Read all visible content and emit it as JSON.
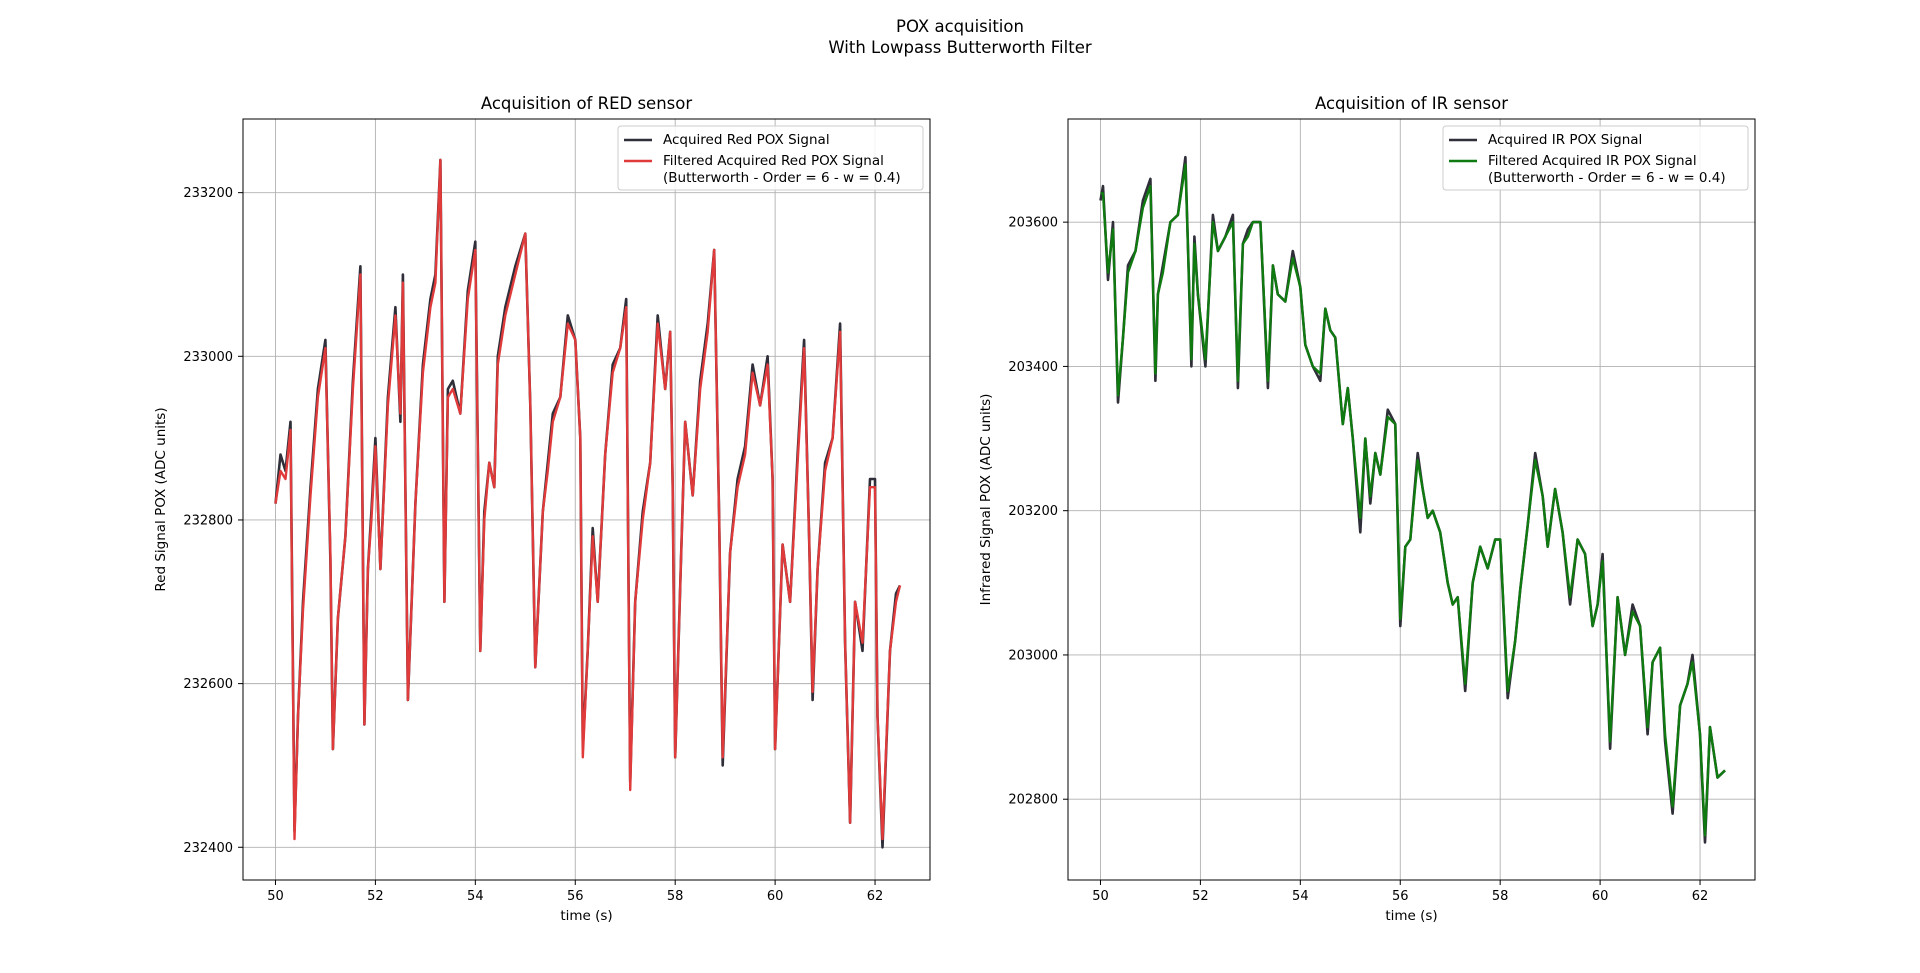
{
  "figure": {
    "suptitle_line1": "POX acquisition",
    "suptitle_line2": "With Lowpass Butterworth Filter"
  },
  "chart_data": [
    {
      "type": "line",
      "title": "Acquisition of RED sensor",
      "xlabel": "time (s)",
      "ylabel": "Red Signal POX (ADC units)",
      "xlim": [
        49.35,
        63.1
      ],
      "ylim": [
        232360,
        233290
      ],
      "xticks": [
        50,
        52,
        54,
        56,
        58,
        60,
        62
      ],
      "yticks": [
        232400,
        232600,
        232800,
        233000,
        233200
      ],
      "grid": true,
      "legend": "top-right",
      "series": [
        {
          "name": "Acquired Red POX Signal",
          "color": "#2f2f3a",
          "x": [
            50.0,
            50.1,
            50.2,
            50.3,
            50.38,
            50.45,
            50.55,
            50.7,
            50.85,
            51.0,
            51.1,
            51.15,
            51.25,
            51.4,
            51.55,
            51.7,
            51.78,
            51.85,
            51.92,
            52.0,
            52.1,
            52.25,
            52.4,
            52.5,
            52.55,
            52.65,
            52.8,
            52.95,
            53.1,
            53.2,
            53.3,
            53.38,
            53.45,
            53.55,
            53.7,
            53.85,
            54.0,
            54.1,
            54.18,
            54.28,
            54.38,
            54.45,
            54.6,
            54.8,
            55.0,
            55.1,
            55.2,
            55.35,
            55.45,
            55.55,
            55.7,
            55.85,
            56.0,
            56.1,
            56.15,
            56.25,
            56.35,
            56.45,
            56.6,
            56.75,
            56.9,
            57.02,
            57.1,
            57.2,
            57.35,
            57.5,
            57.65,
            57.8,
            57.9,
            57.95,
            58.0,
            58.12,
            58.2,
            58.35,
            58.5,
            58.65,
            58.78,
            58.88,
            58.95,
            59.1,
            59.25,
            59.4,
            59.55,
            59.7,
            59.85,
            59.95,
            60.0,
            60.15,
            60.3,
            60.45,
            60.58,
            60.68,
            60.75,
            60.85,
            61.0,
            61.15,
            61.3,
            61.4,
            61.5,
            61.6,
            61.75,
            61.9,
            62.0,
            62.05,
            62.15,
            62.3,
            62.42,
            62.5
          ],
          "y": [
            232820,
            232880,
            232860,
            232920,
            232420,
            232560,
            232700,
            232840,
            232960,
            233020,
            232750,
            232520,
            232680,
            232780,
            232970,
            233110,
            232550,
            232740,
            232810,
            232900,
            232740,
            232950,
            233060,
            232920,
            233100,
            232580,
            232820,
            232990,
            233070,
            233100,
            233240,
            232700,
            232960,
            232970,
            232930,
            233080,
            233140,
            232640,
            232810,
            232870,
            232840,
            233000,
            233060,
            233110,
            233150,
            232940,
            232620,
            232810,
            232870,
            232930,
            232950,
            233050,
            233020,
            232900,
            232520,
            232640,
            232790,
            232700,
            232880,
            232990,
            233010,
            233070,
            232480,
            232700,
            232810,
            232870,
            233050,
            232960,
            233030,
            232840,
            232510,
            232760,
            232920,
            232830,
            232970,
            233040,
            233130,
            232800,
            232500,
            232760,
            232850,
            232890,
            232990,
            232940,
            233000,
            232850,
            232520,
            232770,
            232700,
            232880,
            233020,
            232780,
            232580,
            232740,
            232870,
            232900,
            233040,
            232650,
            232430,
            232700,
            232640,
            232850,
            232850,
            232560,
            232400,
            232640,
            232710,
            232720
          ]
        },
        {
          "name": "Filtered Acquired Red POX Signal\n(Butterworth - Order = 6 - w = 0.4)",
          "color": "#e03a3a",
          "x": [
            50.0,
            50.1,
            50.2,
            50.3,
            50.38,
            50.45,
            50.55,
            50.7,
            50.85,
            51.0,
            51.1,
            51.15,
            51.25,
            51.4,
            51.55,
            51.7,
            51.78,
            51.85,
            51.92,
            52.0,
            52.1,
            52.25,
            52.4,
            52.5,
            52.55,
            52.65,
            52.8,
            52.95,
            53.1,
            53.2,
            53.3,
            53.38,
            53.45,
            53.55,
            53.7,
            53.85,
            54.0,
            54.1,
            54.18,
            54.28,
            54.38,
            54.45,
            54.6,
            54.8,
            55.0,
            55.1,
            55.2,
            55.35,
            55.45,
            55.55,
            55.7,
            55.85,
            56.0,
            56.1,
            56.15,
            56.25,
            56.35,
            56.45,
            56.6,
            56.75,
            56.9,
            57.02,
            57.1,
            57.2,
            57.35,
            57.5,
            57.65,
            57.8,
            57.9,
            57.95,
            58.0,
            58.12,
            58.2,
            58.35,
            58.5,
            58.65,
            58.78,
            58.88,
            58.95,
            59.1,
            59.25,
            59.4,
            59.55,
            59.7,
            59.85,
            59.95,
            60.0,
            60.15,
            60.3,
            60.45,
            60.58,
            60.68,
            60.75,
            60.85,
            61.0,
            61.15,
            61.3,
            61.4,
            61.5,
            61.6,
            61.75,
            61.9,
            62.0,
            62.05,
            62.15,
            62.3,
            62.42,
            62.5
          ],
          "y": [
            232820,
            232860,
            232850,
            232910,
            232410,
            232560,
            232690,
            232830,
            232950,
            233010,
            232760,
            232520,
            232680,
            232780,
            232960,
            233100,
            232550,
            232740,
            232800,
            232890,
            232740,
            232940,
            233050,
            232930,
            233090,
            232580,
            232820,
            232980,
            233060,
            233090,
            233240,
            232700,
            232950,
            232960,
            232930,
            233070,
            233130,
            232640,
            232800,
            232870,
            232840,
            232990,
            233050,
            233100,
            233150,
            232940,
            232620,
            232810,
            232860,
            232920,
            232950,
            233040,
            233020,
            232900,
            232510,
            232640,
            232780,
            232700,
            232880,
            232980,
            233010,
            233060,
            232470,
            232700,
            232800,
            232870,
            233040,
            232960,
            233030,
            232840,
            232510,
            232760,
            232920,
            232830,
            232960,
            233030,
            233130,
            232800,
            232510,
            232760,
            232840,
            232880,
            232980,
            232940,
            232990,
            232850,
            232520,
            232770,
            232700,
            232870,
            233010,
            232780,
            232590,
            232740,
            232860,
            232900,
            233030,
            232650,
            232430,
            232700,
            232650,
            232840,
            232840,
            232560,
            232410,
            232640,
            232700,
            232720
          ]
        }
      ]
    },
    {
      "type": "line",
      "title": "Acquisition of IR sensor",
      "xlabel": "time (s)",
      "ylabel": "Infrared Signal POX (ADC units)",
      "xlim": [
        49.35,
        63.1
      ],
      "ylim": [
        202688,
        203743
      ],
      "xticks": [
        50,
        52,
        54,
        56,
        58,
        60,
        62
      ],
      "yticks": [
        202800,
        203000,
        203200,
        203400,
        203600
      ],
      "grid": true,
      "legend": "top-right",
      "series": [
        {
          "name": "Acquired IR POX Signal",
          "color": "#2f2f3a",
          "x": [
            50.0,
            50.05,
            50.15,
            50.25,
            50.35,
            50.45,
            50.55,
            50.7,
            50.85,
            51.0,
            51.1,
            51.15,
            51.25,
            51.4,
            51.55,
            51.7,
            51.82,
            51.88,
            51.95,
            52.1,
            52.25,
            52.35,
            52.5,
            52.65,
            52.75,
            52.85,
            52.95,
            53.05,
            53.2,
            53.35,
            53.45,
            53.55,
            53.7,
            53.85,
            54.0,
            54.1,
            54.25,
            54.4,
            54.5,
            54.6,
            54.7,
            54.85,
            54.95,
            55.05,
            55.2,
            55.3,
            55.4,
            55.5,
            55.6,
            55.75,
            55.9,
            56.0,
            56.1,
            56.2,
            56.35,
            56.45,
            56.55,
            56.65,
            56.8,
            56.95,
            57.05,
            57.15,
            57.3,
            57.45,
            57.6,
            57.75,
            57.9,
            58.0,
            58.15,
            58.3,
            58.4,
            58.55,
            58.7,
            58.85,
            58.95,
            59.1,
            59.25,
            59.4,
            59.55,
            59.7,
            59.85,
            59.95,
            60.05,
            60.2,
            60.35,
            60.5,
            60.65,
            60.8,
            60.95,
            61.05,
            61.2,
            61.3,
            61.45,
            61.6,
            61.75,
            61.85,
            62.0,
            62.1,
            62.2,
            62.35,
            62.5
          ],
          "y": [
            203630,
            203650,
            203520,
            203600,
            203350,
            203440,
            203540,
            203560,
            203630,
            203660,
            203380,
            203500,
            203540,
            203600,
            203610,
            203690,
            203400,
            203580,
            203500,
            203400,
            203610,
            203560,
            203580,
            203610,
            203370,
            203570,
            203590,
            203600,
            203600,
            203370,
            203540,
            203500,
            203490,
            203560,
            203510,
            203430,
            203400,
            203380,
            203480,
            203450,
            203440,
            203320,
            203370,
            203300,
            203170,
            203300,
            203210,
            203280,
            203250,
            203340,
            203320,
            203040,
            203150,
            203160,
            203280,
            203230,
            203190,
            203200,
            203170,
            203100,
            203070,
            203080,
            202950,
            203100,
            203150,
            203120,
            203160,
            203160,
            202940,
            203020,
            203090,
            203180,
            203280,
            203220,
            203150,
            203230,
            203170,
            203070,
            203160,
            203140,
            203040,
            203070,
            203140,
            202870,
            203080,
            203000,
            203070,
            203040,
            202890,
            202990,
            203010,
            202880,
            202780,
            202930,
            202960,
            203000,
            202890,
            202740,
            202900,
            202830,
            202840
          ]
        },
        {
          "name": "Filtered Acquired IR POX Signal\n(Butterworth - Order = 6 - w = 0.4)",
          "color": "#0f7a0f",
          "x": [
            50.0,
            50.05,
            50.15,
            50.25,
            50.35,
            50.45,
            50.55,
            50.7,
            50.85,
            51.0,
            51.1,
            51.15,
            51.25,
            51.4,
            51.55,
            51.7,
            51.82,
            51.88,
            51.95,
            52.1,
            52.25,
            52.35,
            52.5,
            52.65,
            52.75,
            52.85,
            52.95,
            53.05,
            53.2,
            53.35,
            53.45,
            53.55,
            53.7,
            53.85,
            54.0,
            54.1,
            54.25,
            54.4,
            54.5,
            54.6,
            54.7,
            54.85,
            54.95,
            55.05,
            55.2,
            55.3,
            55.4,
            55.5,
            55.6,
            55.75,
            55.9,
            56.0,
            56.1,
            56.2,
            56.35,
            56.45,
            56.55,
            56.65,
            56.8,
            56.95,
            57.05,
            57.15,
            57.3,
            57.45,
            57.6,
            57.75,
            57.9,
            58.0,
            58.15,
            58.3,
            58.4,
            58.55,
            58.7,
            58.85,
            58.95,
            59.1,
            59.25,
            59.4,
            59.55,
            59.7,
            59.85,
            59.95,
            60.05,
            60.2,
            60.35,
            60.5,
            60.65,
            60.8,
            60.95,
            61.05,
            61.2,
            61.3,
            61.45,
            61.6,
            61.75,
            61.85,
            62.0,
            62.1,
            62.2,
            62.35,
            62.5
          ],
          "y": [
            203640,
            203640,
            203530,
            203590,
            203360,
            203440,
            203530,
            203560,
            203620,
            203650,
            203390,
            203500,
            203530,
            203600,
            203610,
            203680,
            203410,
            203570,
            203500,
            203410,
            203600,
            203560,
            203580,
            203600,
            203380,
            203570,
            203580,
            203600,
            203600,
            203380,
            203540,
            203500,
            203490,
            203550,
            203510,
            203430,
            203400,
            203390,
            203480,
            203450,
            203440,
            203320,
            203370,
            203300,
            203190,
            203300,
            203220,
            203280,
            203250,
            203330,
            203320,
            203050,
            203150,
            203160,
            203270,
            203230,
            203190,
            203200,
            203170,
            203100,
            203070,
            203080,
            202960,
            203100,
            203150,
            203120,
            203160,
            203160,
            202950,
            203020,
            203090,
            203180,
            203270,
            203220,
            203150,
            203230,
            203170,
            203080,
            203160,
            203140,
            203040,
            203070,
            203130,
            202880,
            203080,
            203000,
            203060,
            203040,
            202900,
            202990,
            203010,
            202890,
            202790,
            202930,
            202960,
            202990,
            202890,
            202750,
            202900,
            202830,
            202840
          ]
        }
      ]
    }
  ]
}
